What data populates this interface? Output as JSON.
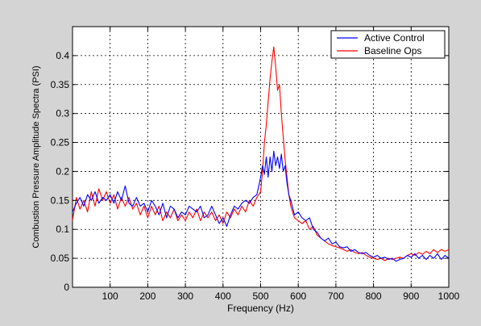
{
  "chart_data": {
    "type": "line",
    "xlabel": "Frequency (Hz)",
    "ylabel": "Combustion Pressure Amplitude Spectra (PSI)",
    "xlim": [
      0,
      1000
    ],
    "ylim": [
      0,
      0.45
    ],
    "x_ticks": [
      100,
      200,
      300,
      400,
      500,
      600,
      700,
      800,
      900,
      1000
    ],
    "y_ticks": [
      0,
      0.05,
      0.1,
      0.15,
      0.2,
      0.25,
      0.3,
      0.35,
      0.4
    ],
    "x_tick_labels": [
      "100",
      "200",
      "300",
      "400",
      "500",
      "600",
      "700",
      "800",
      "900",
      "1000"
    ],
    "y_tick_labels": [
      "0",
      "0.05",
      "0.1",
      "0.15",
      "0.2",
      "0.25",
      "0.3",
      "0.35",
      "0.4"
    ],
    "grid": true,
    "legend_position": "top-right",
    "series": [
      {
        "name": "Active Control",
        "color": "#0000ff",
        "points": [
          [
            0,
            0.13
          ],
          [
            10,
            0.145
          ],
          [
            20,
            0.155
          ],
          [
            30,
            0.14
          ],
          [
            40,
            0.16
          ],
          [
            50,
            0.15
          ],
          [
            60,
            0.165
          ],
          [
            70,
            0.145
          ],
          [
            80,
            0.155
          ],
          [
            90,
            0.15
          ],
          [
            100,
            0.16
          ],
          [
            110,
            0.145
          ],
          [
            120,
            0.165
          ],
          [
            130,
            0.15
          ],
          [
            140,
            0.175
          ],
          [
            150,
            0.145
          ],
          [
            160,
            0.14
          ],
          [
            170,
            0.155
          ],
          [
            180,
            0.14
          ],
          [
            190,
            0.145
          ],
          [
            200,
            0.13
          ],
          [
            210,
            0.15
          ],
          [
            220,
            0.14
          ],
          [
            230,
            0.125
          ],
          [
            240,
            0.145
          ],
          [
            250,
            0.12
          ],
          [
            260,
            0.14
          ],
          [
            270,
            0.135
          ],
          [
            280,
            0.12
          ],
          [
            290,
            0.13
          ],
          [
            300,
            0.125
          ],
          [
            310,
            0.14
          ],
          [
            320,
            0.135
          ],
          [
            330,
            0.13
          ],
          [
            340,
            0.14
          ],
          [
            350,
            0.12
          ],
          [
            360,
            0.125
          ],
          [
            370,
            0.14
          ],
          [
            380,
            0.125
          ],
          [
            390,
            0.11
          ],
          [
            400,
            0.12
          ],
          [
            410,
            0.105
          ],
          [
            420,
            0.125
          ],
          [
            430,
            0.14
          ],
          [
            440,
            0.135
          ],
          [
            450,
            0.145
          ],
          [
            460,
            0.15
          ],
          [
            470,
            0.145
          ],
          [
            480,
            0.155
          ],
          [
            490,
            0.16
          ],
          [
            500,
            0.19
          ],
          [
            505,
            0.21
          ],
          [
            510,
            0.195
          ],
          [
            515,
            0.225
          ],
          [
            520,
            0.19
          ],
          [
            525,
            0.225
          ],
          [
            530,
            0.2
          ],
          [
            535,
            0.235
          ],
          [
            540,
            0.21
          ],
          [
            545,
            0.225
          ],
          [
            550,
            0.205
          ],
          [
            555,
            0.23
          ],
          [
            560,
            0.2
          ],
          [
            565,
            0.21
          ],
          [
            570,
            0.18
          ],
          [
            575,
            0.16
          ],
          [
            580,
            0.15
          ],
          [
            590,
            0.125
          ],
          [
            600,
            0.13
          ],
          [
            610,
            0.12
          ],
          [
            620,
            0.115
          ],
          [
            630,
            0.12
          ],
          [
            640,
            0.1
          ],
          [
            650,
            0.095
          ],
          [
            660,
            0.085
          ],
          [
            670,
            0.08
          ],
          [
            680,
            0.085
          ],
          [
            690,
            0.075
          ],
          [
            700,
            0.078
          ],
          [
            710,
            0.07
          ],
          [
            720,
            0.068
          ],
          [
            730,
            0.07
          ],
          [
            740,
            0.062
          ],
          [
            750,
            0.065
          ],
          [
            760,
            0.06
          ],
          [
            770,
            0.058
          ],
          [
            780,
            0.06
          ],
          [
            790,
            0.055
          ],
          [
            800,
            0.052
          ],
          [
            810,
            0.055
          ],
          [
            820,
            0.05
          ],
          [
            830,
            0.052
          ],
          [
            840,
            0.048
          ],
          [
            850,
            0.05
          ],
          [
            860,
            0.045
          ],
          [
            870,
            0.048
          ],
          [
            880,
            0.05
          ],
          [
            890,
            0.055
          ],
          [
            900,
            0.052
          ],
          [
            910,
            0.058
          ],
          [
            920,
            0.05
          ],
          [
            930,
            0.055
          ],
          [
            940,
            0.048
          ],
          [
            950,
            0.055
          ],
          [
            960,
            0.05
          ],
          [
            970,
            0.058
          ],
          [
            980,
            0.048
          ],
          [
            990,
            0.055
          ],
          [
            1000,
            0.05
          ]
        ]
      },
      {
        "name": "Baseline Ops",
        "color": "#ff0000",
        "points": [
          [
            0,
            0.115
          ],
          [
            10,
            0.155
          ],
          [
            20,
            0.135
          ],
          [
            30,
            0.15
          ],
          [
            40,
            0.13
          ],
          [
            50,
            0.165
          ],
          [
            60,
            0.14
          ],
          [
            70,
            0.17
          ],
          [
            80,
            0.15
          ],
          [
            90,
            0.165
          ],
          [
            100,
            0.145
          ],
          [
            110,
            0.16
          ],
          [
            120,
            0.135
          ],
          [
            130,
            0.155
          ],
          [
            140,
            0.14
          ],
          [
            150,
            0.155
          ],
          [
            160,
            0.135
          ],
          [
            170,
            0.145
          ],
          [
            180,
            0.125
          ],
          [
            190,
            0.14
          ],
          [
            200,
            0.12
          ],
          [
            210,
            0.14
          ],
          [
            220,
            0.125
          ],
          [
            230,
            0.14
          ],
          [
            240,
            0.115
          ],
          [
            250,
            0.13
          ],
          [
            260,
            0.12
          ],
          [
            270,
            0.135
          ],
          [
            280,
            0.115
          ],
          [
            290,
            0.125
          ],
          [
            300,
            0.115
          ],
          [
            310,
            0.13
          ],
          [
            320,
            0.12
          ],
          [
            330,
            0.135
          ],
          [
            340,
            0.115
          ],
          [
            350,
            0.13
          ],
          [
            360,
            0.12
          ],
          [
            370,
            0.13
          ],
          [
            380,
            0.115
          ],
          [
            390,
            0.125
          ],
          [
            400,
            0.11
          ],
          [
            410,
            0.13
          ],
          [
            420,
            0.12
          ],
          [
            430,
            0.135
          ],
          [
            440,
            0.125
          ],
          [
            450,
            0.14
          ],
          [
            460,
            0.13
          ],
          [
            470,
            0.15
          ],
          [
            480,
            0.14
          ],
          [
            490,
            0.155
          ],
          [
            500,
            0.165
          ],
          [
            505,
            0.2
          ],
          [
            510,
            0.25
          ],
          [
            515,
            0.28
          ],
          [
            520,
            0.32
          ],
          [
            525,
            0.36
          ],
          [
            530,
            0.39
          ],
          [
            535,
            0.415
          ],
          [
            540,
            0.38
          ],
          [
            545,
            0.34
          ],
          [
            550,
            0.35
          ],
          [
            555,
            0.3
          ],
          [
            560,
            0.26
          ],
          [
            565,
            0.22
          ],
          [
            570,
            0.19
          ],
          [
            575,
            0.16
          ],
          [
            580,
            0.14
          ],
          [
            590,
            0.12
          ],
          [
            600,
            0.115
          ],
          [
            610,
            0.11
          ],
          [
            620,
            0.115
          ],
          [
            630,
            0.1
          ],
          [
            640,
            0.105
          ],
          [
            650,
            0.09
          ],
          [
            660,
            0.085
          ],
          [
            670,
            0.08
          ],
          [
            680,
            0.075
          ],
          [
            690,
            0.072
          ],
          [
            700,
            0.07
          ],
          [
            710,
            0.068
          ],
          [
            720,
            0.065
          ],
          [
            730,
            0.062
          ],
          [
            740,
            0.065
          ],
          [
            750,
            0.06
          ],
          [
            760,
            0.058
          ],
          [
            770,
            0.06
          ],
          [
            780,
            0.055
          ],
          [
            790,
            0.052
          ],
          [
            800,
            0.05
          ],
          [
            810,
            0.048
          ],
          [
            820,
            0.05
          ],
          [
            830,
            0.046
          ],
          [
            840,
            0.05
          ],
          [
            850,
            0.048
          ],
          [
            860,
            0.05
          ],
          [
            870,
            0.052
          ],
          [
            880,
            0.05
          ],
          [
            890,
            0.055
          ],
          [
            900,
            0.058
          ],
          [
            910,
            0.055
          ],
          [
            920,
            0.06
          ],
          [
            930,
            0.057
          ],
          [
            940,
            0.062
          ],
          [
            950,
            0.058
          ],
          [
            960,
            0.065
          ],
          [
            970,
            0.06
          ],
          [
            980,
            0.065
          ],
          [
            990,
            0.062
          ],
          [
            1000,
            0.065
          ]
        ]
      }
    ]
  }
}
